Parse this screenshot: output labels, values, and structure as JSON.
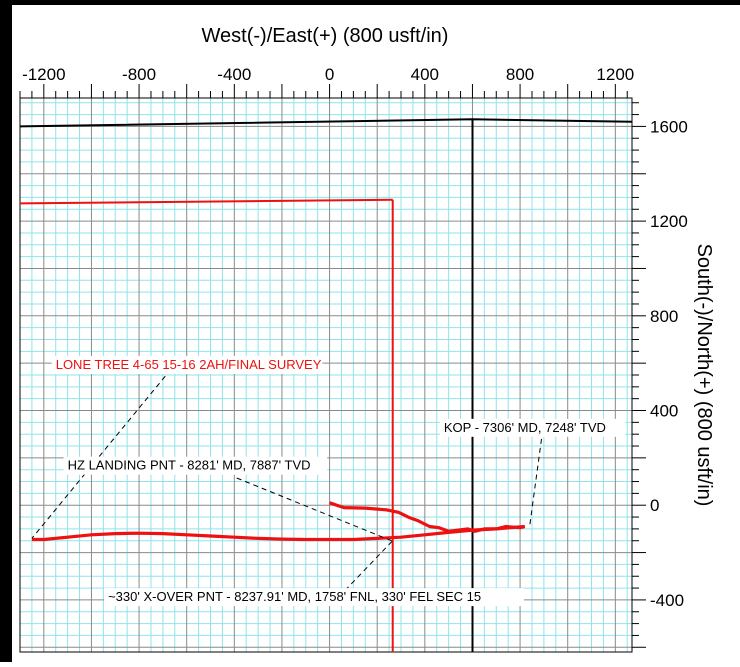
{
  "chart_data": {
    "type": "line",
    "xlabel": "West(-)/East(+) (800 usft/in)",
    "ylabel": "South(-)/North(+) (800 usft/in)",
    "xlim": [
      -1300,
      1270
    ],
    "ylim": [
      -620,
      1720
    ],
    "x_ticks": [
      "-1200",
      "-800",
      "-400",
      "0",
      "400",
      "800",
      "1200"
    ],
    "x_tick_values": [
      -1200,
      -800,
      -400,
      0,
      400,
      800,
      1200
    ],
    "y_ticks": [
      "1600",
      "1200",
      "800",
      "400",
      "0",
      "-400"
    ],
    "y_tick_values": [
      1600,
      1200,
      800,
      400,
      0,
      -400
    ],
    "grid": true,
    "grid_minor_step": 50,
    "grid_major_step": 200,
    "colors": {
      "minor_grid": "#8fe4ea",
      "major_grid": "#8a8a8a",
      "well": "#ee1111",
      "boundary": "#000000",
      "target": "#ee1111"
    },
    "series": [
      {
        "name": "LONE TREE 4-65 15-16 2AH/FINAL SURVEY",
        "color": "#ee1111",
        "x": [
          0,
          60,
          150,
          240,
          290,
          330,
          370,
          420,
          460,
          500,
          540,
          580,
          610,
          650,
          700,
          740,
          800,
          820
        ],
        "y": [
          10,
          -10,
          -12,
          -20,
          -30,
          -50,
          -65,
          -90,
          -95,
          -110,
          -105,
          -100,
          -110,
          -100,
          -100,
          -90,
          -95,
          -90
        ]
      },
      {
        "x": [
          820,
          700,
          600,
          500,
          400,
          300,
          200,
          100,
          0,
          -100,
          -200,
          -300,
          -400,
          -500,
          -600,
          -700,
          -800,
          -900,
          -1000,
          -1100,
          -1200,
          -1250
        ],
        "y": [
          -90,
          -100,
          -105,
          -115,
          -125,
          -135,
          -140,
          -145,
          -145,
          -145,
          -143,
          -140,
          -135,
          -130,
          -125,
          -120,
          -118,
          -120,
          -125,
          -135,
          -145,
          -145
        ]
      }
    ],
    "target_lines": [
      {
        "x": [
          -1300,
          265
        ],
        "y": [
          1275,
          1290
        ]
      },
      {
        "x": [
          265,
          265
        ],
        "y": [
          1290,
          -620
        ]
      }
    ],
    "boundary_lines": [
      {
        "x": [
          -1300,
          600,
          1270
        ],
        "y": [
          1600,
          1630,
          1620
        ]
      },
      {
        "x": [
          600,
          600
        ],
        "y": [
          1630,
          -620
        ]
      }
    ],
    "annotations": [
      {
        "text": "LONE TREE 4-65 15-16 2AH/FINAL SURVEY",
        "color": "#ee1111",
        "x": -1150,
        "y": 575,
        "leader": [
          [
            -690,
            545
          ],
          [
            -1250,
            -140
          ]
        ]
      },
      {
        "text": "KOP - 7306' MD, 7248' TVD",
        "color": "#000000",
        "x": 480,
        "y": 310,
        "leader": [
          [
            890,
            280
          ],
          [
            840,
            -90
          ]
        ]
      },
      {
        "text": "HZ LANDING PNT - 8281' MD, 7887' TVD",
        "color": "#000000",
        "x": -1100,
        "y": 150,
        "leader": [
          [
            -390,
            115
          ],
          [
            260,
            -150
          ]
        ]
      },
      {
        "text": "~330' X-OVER PNT - 8237.91' MD, 1758' FNL, 330' FEL SEC 15",
        "color": "#000000",
        "x": -930,
        "y": -405,
        "leader": [
          [
            65,
            -360
          ],
          [
            265,
            -150
          ]
        ]
      }
    ]
  }
}
